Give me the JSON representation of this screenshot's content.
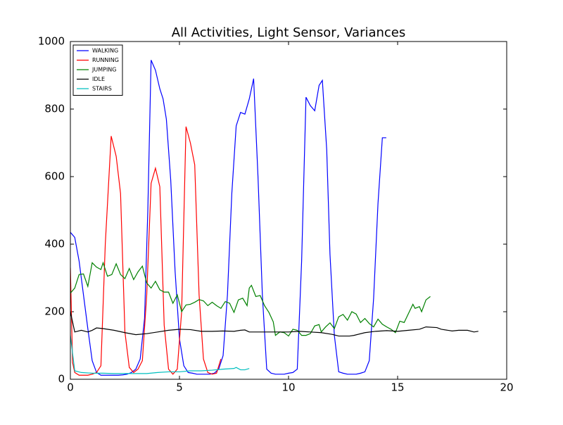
{
  "chart_data": {
    "type": "line",
    "title": "All Activities, Light Sensor, Variances",
    "xlim": [
      0,
      20
    ],
    "xticks": [
      0,
      5,
      10,
      15,
      20
    ],
    "ylim": [
      0,
      1000
    ],
    "yticks": [
      0,
      200,
      400,
      600,
      800,
      1000
    ],
    "grid": false,
    "legend": "upper-left",
    "series": [
      {
        "name": "WALKING",
        "color": "#0000ff",
        "x": [
          0,
          0.2,
          0.4,
          0.6,
          0.8,
          1.0,
          1.2,
          1.4,
          1.6,
          1.8,
          2.0,
          2.2,
          2.4,
          2.6,
          2.8,
          3.0,
          3.2,
          3.4,
          3.55,
          3.7,
          3.9,
          4.1,
          4.25,
          4.4,
          4.6,
          4.8,
          5.0,
          5.2,
          5.4,
          5.6,
          5.8,
          6.0,
          6.2,
          6.4,
          6.6,
          6.8,
          7.0,
          7.2,
          7.4,
          7.6,
          7.8,
          8.0,
          8.2,
          8.4,
          8.6,
          8.8,
          9.0,
          9.2,
          9.4,
          9.6,
          9.8,
          10.0,
          10.2,
          10.4,
          10.6,
          10.8,
          11.0,
          11.2,
          11.4,
          11.55,
          11.75,
          11.9,
          12.1,
          12.3,
          12.5,
          12.7,
          12.9,
          13.1,
          13.3,
          13.5,
          13.7,
          13.9,
          14.1,
          14.3,
          14.48
        ],
        "values": [
          435,
          420,
          350,
          250,
          150,
          55,
          20,
          12,
          12,
          12,
          12,
          12,
          13,
          15,
          20,
          30,
          60,
          180,
          500,
          945,
          915,
          860,
          830,
          770,
          590,
          320,
          120,
          40,
          20,
          18,
          15,
          15,
          15,
          15,
          18,
          30,
          70,
          250,
          550,
          750,
          790,
          785,
          830,
          890,
          600,
          250,
          30,
          18,
          15,
          15,
          15,
          18,
          20,
          30,
          350,
          835,
          810,
          795,
          870,
          885,
          680,
          370,
          130,
          22,
          18,
          15,
          15,
          15,
          18,
          22,
          55,
          240,
          520,
          715,
          715
        ]
      },
      {
        "name": "RUNNING",
        "color": "#ff0000",
        "x": [
          0,
          0.1,
          0.2,
          0.4,
          0.6,
          0.8,
          1.0,
          1.2,
          1.4,
          1.6,
          1.87,
          2.1,
          2.3,
          2.5,
          2.7,
          2.9,
          3.1,
          3.3,
          3.5,
          3.7,
          3.9,
          4.1,
          4.3,
          4.5,
          4.7,
          4.9,
          5.1,
          5.3,
          5.5,
          5.7,
          5.9,
          6.1,
          6.3,
          6.5,
          6.7,
          6.9
        ],
        "values": [
          330,
          50,
          20,
          12,
          12,
          12,
          15,
          20,
          40,
          400,
          720,
          660,
          550,
          140,
          35,
          20,
          30,
          55,
          250,
          580,
          625,
          570,
          160,
          30,
          15,
          30,
          200,
          748,
          700,
          635,
          250,
          60,
          20,
          15,
          18,
          60
        ]
      },
      {
        "name": "JUMPING",
        "color": "#008000",
        "x": [
          0,
          0.2,
          0.4,
          0.6,
          0.8,
          1.0,
          1.2,
          1.4,
          1.5,
          1.7,
          1.9,
          2.1,
          2.3,
          2.5,
          2.7,
          2.9,
          3.1,
          3.3,
          3.5,
          3.7,
          3.9,
          4.1,
          4.3,
          4.5,
          4.7,
          4.9,
          5.1,
          5.3,
          5.5,
          5.7,
          5.9,
          6.1,
          6.3,
          6.5,
          6.7,
          6.9,
          7.1,
          7.3,
          7.5,
          7.7,
          7.9,
          8.1,
          8.2,
          8.3,
          8.5,
          8.7,
          8.9,
          9.1,
          9.3,
          9.4,
          9.6,
          9.8,
          10.0,
          10.2,
          10.4,
          10.6,
          10.8,
          11.0,
          11.2,
          11.4,
          11.5,
          11.7,
          11.9,
          12.1,
          12.3,
          12.5,
          12.7,
          12.9,
          13.1,
          13.3,
          13.5,
          13.7,
          13.9,
          14.1,
          14.3,
          14.5,
          14.7,
          14.9,
          15.1,
          15.3,
          15.5,
          15.7,
          15.8,
          16.0,
          16.1,
          16.3,
          16.5
        ],
        "values": [
          255,
          270,
          310,
          312,
          275,
          345,
          332,
          325,
          345,
          305,
          310,
          342,
          310,
          298,
          328,
          295,
          318,
          335,
          285,
          270,
          290,
          265,
          258,
          258,
          225,
          250,
          200,
          220,
          222,
          228,
          236,
          232,
          218,
          228,
          218,
          210,
          230,
          225,
          198,
          235,
          240,
          218,
          270,
          278,
          245,
          248,
          218,
          198,
          170,
          130,
          140,
          138,
          128,
          148,
          145,
          130,
          130,
          135,
          158,
          162,
          140,
          155,
          167,
          150,
          185,
          192,
          175,
          200,
          193,
          168,
          180,
          165,
          155,
          178,
          163,
          155,
          148,
          138,
          172,
          168,
          195,
          222,
          210,
          215,
          200,
          235,
          245
        ]
      },
      {
        "name": "IDLE",
        "color": "#000000",
        "x": [
          0,
          0.2,
          0.5,
          0.8,
          1.0,
          1.2,
          1.5,
          2.0,
          2.5,
          3.0,
          3.5,
          4.0,
          4.5,
          5.0,
          5.5,
          6.0,
          6.5,
          7.0,
          7.5,
          7.8,
          8.0,
          8.2,
          8.5,
          9.0,
          9.5,
          10.0,
          10.5,
          11.0,
          11.5,
          12.0,
          12.3,
          12.8,
          13.0,
          13.5,
          14.0,
          14.5,
          15.0,
          15.5,
          16.0,
          16.3,
          16.8,
          17.0,
          17.5,
          17.8,
          18.2,
          18.5,
          18.7
        ],
        "values": [
          200,
          140,
          145,
          140,
          145,
          152,
          150,
          145,
          138,
          132,
          135,
          140,
          145,
          148,
          147,
          142,
          142,
          143,
          142,
          145,
          146,
          140,
          140,
          140,
          140,
          140,
          142,
          140,
          138,
          133,
          128,
          128,
          130,
          138,
          142,
          144,
          142,
          145,
          148,
          155,
          153,
          148,
          143,
          145,
          145,
          140,
          142
        ]
      },
      {
        "name": "STAIRS",
        "color": "#00bfbf",
        "x": [
          0,
          0.2,
          0.5,
          1.0,
          1.5,
          2.0,
          2.5,
          3.0,
          3.5,
          4.0,
          4.5,
          5.0,
          5.5,
          6.0,
          6.5,
          7.0,
          7.5,
          7.6,
          7.8,
          8.0,
          8.2
        ],
        "values": [
          130,
          25,
          20,
          18,
          18,
          17,
          17,
          17,
          17,
          20,
          22,
          22,
          25,
          25,
          27,
          30,
          32,
          35,
          28,
          28,
          32
        ]
      }
    ]
  }
}
